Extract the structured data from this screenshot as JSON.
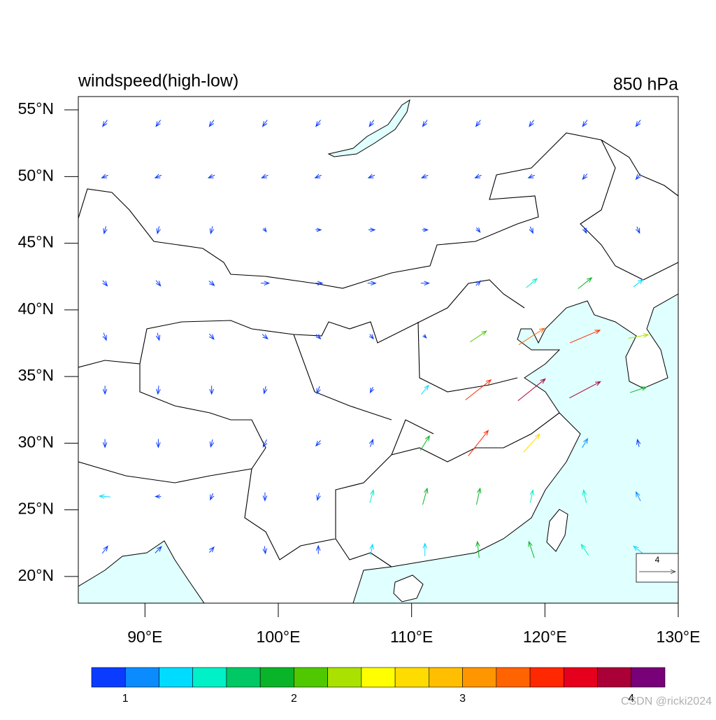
{
  "map": {
    "title": "windspeed(high-low)",
    "level": "850 hPa",
    "xlim": [
      85,
      130
    ],
    "ylim": [
      18,
      56
    ],
    "xticks": [
      {
        "value": 90,
        "label": "90°E"
      },
      {
        "value": 100,
        "label": "100°E"
      },
      {
        "value": 110,
        "label": "110°E"
      },
      {
        "value": 120,
        "label": "120°E"
      },
      {
        "value": 130,
        "label": "130°E"
      }
    ],
    "yticks": [
      {
        "value": 20,
        "label": "20°N"
      },
      {
        "value": 25,
        "label": "25°N"
      },
      {
        "value": 30,
        "label": "30°N"
      },
      {
        "value": 35,
        "label": "35°N"
      },
      {
        "value": 40,
        "label": "40°N"
      },
      {
        "value": 45,
        "label": "45°N"
      },
      {
        "value": 50,
        "label": "50°N"
      },
      {
        "value": 55,
        "label": "55°N"
      }
    ],
    "vectors": {
      "lon": [
        87,
        91,
        95,
        99,
        103,
        107,
        111,
        115,
        119,
        123,
        127
      ],
      "lat": [
        54,
        50,
        46,
        42,
        38,
        34,
        30,
        26,
        22
      ],
      "u": [
        [
          -0.5,
          -0.5,
          -0.5,
          -0.5,
          -0.5,
          -0.5,
          -0.5,
          -0.5,
          -0.5,
          -0.5,
          -0.5
        ],
        [
          -0.7,
          -0.7,
          -0.7,
          -0.7,
          -0.7,
          -0.7,
          -0.7,
          -0.7,
          -0.7,
          -0.5,
          -0.5
        ],
        [
          -0.2,
          -0.2,
          -0.2,
          0.3,
          0.6,
          0.7,
          0.6,
          0.4,
          0.3,
          0.3,
          0.3
        ],
        [
          0.5,
          0.5,
          0.6,
          0.9,
          0.9,
          0.9,
          0.9,
          0.5,
          1.2,
          1.5,
          1.0
        ],
        [
          0.3,
          0.2,
          0.5,
          0.6,
          0.5,
          0.4,
          0.3,
          1.8,
          2.8,
          3.3,
          2.2
        ],
        [
          0,
          -0.1,
          0,
          -0.2,
          -0.3,
          -0.3,
          0.8,
          2.8,
          3.0,
          3.4,
          1.8
        ],
        [
          0,
          0,
          -0.2,
          -0.4,
          -0.5,
          0.3,
          1.0,
          2.2,
          1.8,
          0.6,
          -0.2
        ],
        [
          -1.2,
          -0.6,
          -0.3,
          0,
          -0.2,
          0.4,
          0.5,
          0.4,
          0.3,
          -0.3,
          -0.5
        ],
        [
          0.6,
          0.7,
          0.5,
          0.1,
          0,
          0.2,
          0,
          -0.2,
          -0.6,
          -0.8,
          -1.0
        ]
      ],
      "v": [
        [
          -0.7,
          -0.7,
          -0.7,
          -0.7,
          -0.7,
          -0.7,
          -0.7,
          -0.7,
          -0.7,
          -0.7,
          -0.7
        ],
        [
          -0.3,
          -0.3,
          -0.3,
          -0.3,
          -0.3,
          -0.3,
          -0.3,
          -0.3,
          -0.3,
          -0.6,
          -0.6
        ],
        [
          -0.8,
          -0.8,
          -0.8,
          -0.4,
          0,
          0,
          0,
          -0.5,
          -0.7,
          -0.7,
          -0.7
        ],
        [
          -0.6,
          -0.6,
          -0.5,
          0,
          0,
          0,
          0,
          0.5,
          1.0,
          1.2,
          0.8
        ],
        [
          -0.8,
          -0.8,
          -0.6,
          -0.5,
          -0.5,
          -0.5,
          -0.3,
          1.2,
          1.8,
          1.4,
          0.4
        ],
        [
          -0.9,
          -0.9,
          -0.9,
          -0.8,
          -0.8,
          -0.6,
          1.0,
          2.2,
          2.4,
          1.8,
          0.6
        ],
        [
          -0.9,
          -0.9,
          -0.8,
          -0.8,
          -0.6,
          0.8,
          1.6,
          2.8,
          2.0,
          1.0,
          0.8
        ],
        [
          0.1,
          0,
          -0.7,
          -0.9,
          -0.8,
          1.4,
          1.8,
          1.8,
          1.4,
          1.4,
          1.0
        ],
        [
          0.8,
          0.7,
          0.6,
          -0.8,
          0.9,
          1.2,
          1.4,
          1.8,
          1.8,
          1.2,
          0.8
        ]
      ]
    },
    "ref_vector": 4,
    "colorbar": {
      "clim": [
        0.8,
        4.2
      ],
      "colors": [
        "#0a3cff",
        "#0a8cff",
        "#00dcff",
        "#00f0c8",
        "#00c864",
        "#0ab428",
        "#50c800",
        "#aae100",
        "#ffff00",
        "#ffdc00",
        "#ffbe00",
        "#ff9600",
        "#ff6400",
        "#ff2800",
        "#e6001e",
        "#aa0037",
        "#780078"
      ],
      "ticks": [
        1,
        2,
        3,
        4
      ]
    },
    "watermark": "CSDN @ricki2024"
  }
}
